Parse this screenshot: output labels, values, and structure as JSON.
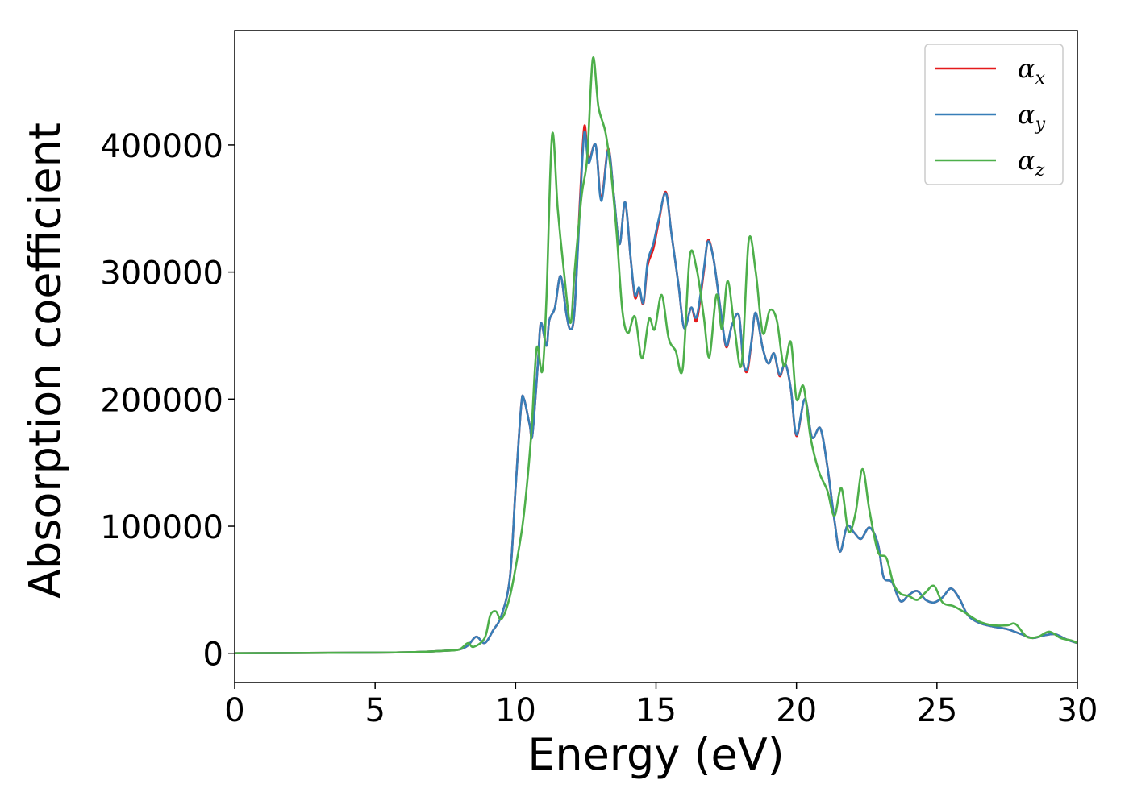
{
  "chart_data": {
    "type": "line",
    "xlabel": "Energy (eV)",
    "ylabel": "Absorption coefficient",
    "xlim": [
      0,
      30
    ],
    "ylim": [
      -23000,
      490000
    ],
    "xticks": [
      0,
      5,
      10,
      15,
      20,
      25,
      30
    ],
    "xtick_labels": [
      "0",
      "5",
      "10",
      "15",
      "20",
      "25",
      "30"
    ],
    "yticks": [
      0,
      100000,
      200000,
      300000,
      400000
    ],
    "ytick_labels": [
      "0",
      "100000",
      "200000",
      "300000",
      "400000"
    ],
    "grid": false,
    "legend_position": "top-right",
    "series": [
      {
        "name": "α_x",
        "symbol": "α",
        "subscript": "x",
        "color": "#e41a1c",
        "points": [
          [
            0,
            0
          ],
          [
            5,
            500
          ],
          [
            6.5,
            1000
          ],
          [
            7.5,
            2000
          ],
          [
            8.0,
            3000
          ],
          [
            8.3,
            6000
          ],
          [
            8.6,
            13000
          ],
          [
            8.9,
            8000
          ],
          [
            9.2,
            18000
          ],
          [
            9.5,
            30000
          ],
          [
            9.8,
            60000
          ],
          [
            10.0,
            130000
          ],
          [
            10.2,
            195000
          ],
          [
            10.3,
            200000
          ],
          [
            10.5,
            180000
          ],
          [
            10.6,
            172000
          ],
          [
            10.8,
            230000
          ],
          [
            10.9,
            260000
          ],
          [
            11.1,
            242000
          ],
          [
            11.2,
            262000
          ],
          [
            11.4,
            272000
          ],
          [
            11.6,
            297000
          ],
          [
            11.8,
            268000
          ],
          [
            11.95,
            255000
          ],
          [
            12.1,
            270000
          ],
          [
            12.3,
            360000
          ],
          [
            12.45,
            415000
          ],
          [
            12.6,
            388000
          ],
          [
            12.85,
            400000
          ],
          [
            13.05,
            358000
          ],
          [
            13.3,
            397000
          ],
          [
            13.5,
            360000
          ],
          [
            13.7,
            322000
          ],
          [
            13.9,
            355000
          ],
          [
            14.1,
            310000
          ],
          [
            14.25,
            280000
          ],
          [
            14.4,
            287000
          ],
          [
            14.55,
            275000
          ],
          [
            14.7,
            305000
          ],
          [
            14.9,
            318000
          ],
          [
            15.1,
            340000
          ],
          [
            15.35,
            363000
          ],
          [
            15.55,
            330000
          ],
          [
            15.8,
            290000
          ],
          [
            16.0,
            256000
          ],
          [
            16.25,
            272000
          ],
          [
            16.45,
            262000
          ],
          [
            16.7,
            300000
          ],
          [
            16.85,
            325000
          ],
          [
            17.05,
            310000
          ],
          [
            17.3,
            270000
          ],
          [
            17.5,
            241000
          ],
          [
            17.7,
            258000
          ],
          [
            17.95,
            266000
          ],
          [
            18.1,
            230000
          ],
          [
            18.25,
            222000
          ],
          [
            18.4,
            245000
          ],
          [
            18.55,
            268000
          ],
          [
            18.8,
            240000
          ],
          [
            19.0,
            228000
          ],
          [
            19.2,
            236000
          ],
          [
            19.4,
            218000
          ],
          [
            19.6,
            228000
          ],
          [
            19.8,
            208000
          ],
          [
            20.0,
            171000
          ],
          [
            20.3,
            200000
          ],
          [
            20.55,
            170000
          ],
          [
            20.85,
            177000
          ],
          [
            21.1,
            147000
          ],
          [
            21.35,
            105000
          ],
          [
            21.55,
            80000
          ],
          [
            21.8,
            100000
          ],
          [
            22.05,
            95000
          ],
          [
            22.3,
            90000
          ],
          [
            22.6,
            99000
          ],
          [
            22.9,
            86000
          ],
          [
            23.1,
            60000
          ],
          [
            23.4,
            56000
          ],
          [
            23.7,
            41000
          ],
          [
            24.0,
            46000
          ],
          [
            24.3,
            49000
          ],
          [
            24.6,
            42000
          ],
          [
            24.9,
            40000
          ],
          [
            25.2,
            44000
          ],
          [
            25.5,
            51000
          ],
          [
            25.8,
            43000
          ],
          [
            26.1,
            30000
          ],
          [
            26.5,
            24000
          ],
          [
            27.0,
            21000
          ],
          [
            27.5,
            19000
          ],
          [
            28.0,
            15000
          ],
          [
            28.4,
            12000
          ],
          [
            28.8,
            14000
          ],
          [
            29.2,
            15000
          ],
          [
            29.6,
            11000
          ],
          [
            30.0,
            8000
          ]
        ]
      },
      {
        "name": "α_y",
        "symbol": "α",
        "subscript": "y",
        "color": "#377eb8",
        "points": [
          [
            0,
            0
          ],
          [
            5,
            500
          ],
          [
            6.5,
            1000
          ],
          [
            7.5,
            2000
          ],
          [
            8.0,
            3000
          ],
          [
            8.3,
            6000
          ],
          [
            8.6,
            13000
          ],
          [
            8.9,
            8000
          ],
          [
            9.2,
            18000
          ],
          [
            9.5,
            30000
          ],
          [
            9.8,
            60000
          ],
          [
            10.0,
            130000
          ],
          [
            10.2,
            195000
          ],
          [
            10.3,
            200000
          ],
          [
            10.5,
            180000
          ],
          [
            10.6,
            172000
          ],
          [
            10.8,
            230000
          ],
          [
            10.9,
            260000
          ],
          [
            11.1,
            242000
          ],
          [
            11.2,
            262000
          ],
          [
            11.4,
            272000
          ],
          [
            11.6,
            297000
          ],
          [
            11.8,
            268000
          ],
          [
            11.95,
            255000
          ],
          [
            12.1,
            270000
          ],
          [
            12.3,
            355000
          ],
          [
            12.45,
            410000
          ],
          [
            12.6,
            386000
          ],
          [
            12.85,
            400000
          ],
          [
            13.05,
            356000
          ],
          [
            13.3,
            396000
          ],
          [
            13.5,
            360000
          ],
          [
            13.7,
            322000
          ],
          [
            13.9,
            355000
          ],
          [
            14.1,
            310000
          ],
          [
            14.25,
            282000
          ],
          [
            14.4,
            288000
          ],
          [
            14.55,
            276000
          ],
          [
            14.7,
            308000
          ],
          [
            14.9,
            322000
          ],
          [
            15.1,
            342000
          ],
          [
            15.35,
            362000
          ],
          [
            15.55,
            330000
          ],
          [
            15.8,
            290000
          ],
          [
            16.0,
            256000
          ],
          [
            16.25,
            272000
          ],
          [
            16.45,
            265000
          ],
          [
            16.7,
            302000
          ],
          [
            16.85,
            324000
          ],
          [
            17.05,
            310000
          ],
          [
            17.3,
            270000
          ],
          [
            17.5,
            242000
          ],
          [
            17.7,
            258000
          ],
          [
            17.95,
            266000
          ],
          [
            18.1,
            230000
          ],
          [
            18.25,
            224000
          ],
          [
            18.4,
            246000
          ],
          [
            18.55,
            268000
          ],
          [
            18.8,
            240000
          ],
          [
            19.0,
            228000
          ],
          [
            19.2,
            236000
          ],
          [
            19.4,
            219000
          ],
          [
            19.6,
            228000
          ],
          [
            19.8,
            208000
          ],
          [
            20.0,
            172000
          ],
          [
            20.3,
            200000
          ],
          [
            20.55,
            170000
          ],
          [
            20.85,
            177000
          ],
          [
            21.1,
            147000
          ],
          [
            21.35,
            105000
          ],
          [
            21.55,
            80000
          ],
          [
            21.8,
            100000
          ],
          [
            22.05,
            95000
          ],
          [
            22.3,
            90000
          ],
          [
            22.6,
            99000
          ],
          [
            22.9,
            86000
          ],
          [
            23.1,
            60000
          ],
          [
            23.4,
            56000
          ],
          [
            23.7,
            41000
          ],
          [
            24.0,
            46000
          ],
          [
            24.3,
            49000
          ],
          [
            24.6,
            42000
          ],
          [
            24.9,
            40000
          ],
          [
            25.2,
            44000
          ],
          [
            25.5,
            51000
          ],
          [
            25.8,
            43000
          ],
          [
            26.1,
            30000
          ],
          [
            26.5,
            24000
          ],
          [
            27.0,
            21000
          ],
          [
            27.5,
            19000
          ],
          [
            28.0,
            15000
          ],
          [
            28.4,
            12000
          ],
          [
            28.8,
            14000
          ],
          [
            29.2,
            15000
          ],
          [
            29.6,
            11000
          ],
          [
            30.0,
            8000
          ]
        ]
      },
      {
        "name": "α_z",
        "symbol": "α",
        "subscript": "z",
        "color": "#4daf4a",
        "points": [
          [
            0,
            0
          ],
          [
            5,
            500
          ],
          [
            6.5,
            1000
          ],
          [
            7.5,
            2000
          ],
          [
            8.0,
            3000
          ],
          [
            8.3,
            8000
          ],
          [
            8.5,
            5000
          ],
          [
            8.9,
            12000
          ],
          [
            9.1,
            30000
          ],
          [
            9.3,
            33000
          ],
          [
            9.5,
            27000
          ],
          [
            9.8,
            45000
          ],
          [
            10.1,
            80000
          ],
          [
            10.3,
            110000
          ],
          [
            10.55,
            170000
          ],
          [
            10.75,
            240000
          ],
          [
            10.95,
            222000
          ],
          [
            11.1,
            280000
          ],
          [
            11.3,
            408000
          ],
          [
            11.5,
            350000
          ],
          [
            11.7,
            305000
          ],
          [
            11.95,
            260000
          ],
          [
            12.1,
            300000
          ],
          [
            12.35,
            360000
          ],
          [
            12.55,
            390000
          ],
          [
            12.75,
            468000
          ],
          [
            12.95,
            430000
          ],
          [
            13.2,
            410000
          ],
          [
            13.4,
            378000
          ],
          [
            13.6,
            330000
          ],
          [
            13.8,
            270000
          ],
          [
            14.0,
            252000
          ],
          [
            14.25,
            265000
          ],
          [
            14.5,
            232000
          ],
          [
            14.75,
            263000
          ],
          [
            14.95,
            255000
          ],
          [
            15.2,
            282000
          ],
          [
            15.45,
            248000
          ],
          [
            15.7,
            238000
          ],
          [
            15.95,
            224000
          ],
          [
            16.2,
            312000
          ],
          [
            16.45,
            302000
          ],
          [
            16.7,
            265000
          ],
          [
            16.9,
            233000
          ],
          [
            17.15,
            282000
          ],
          [
            17.35,
            255000
          ],
          [
            17.55,
            293000
          ],
          [
            17.8,
            255000
          ],
          [
            18.05,
            228000
          ],
          [
            18.3,
            325000
          ],
          [
            18.55,
            300000
          ],
          [
            18.8,
            252000
          ],
          [
            19.05,
            270000
          ],
          [
            19.3,
            262000
          ],
          [
            19.55,
            226000
          ],
          [
            19.8,
            245000
          ],
          [
            20.0,
            200000
          ],
          [
            20.25,
            210000
          ],
          [
            20.5,
            170000
          ],
          [
            20.8,
            143000
          ],
          [
            21.1,
            128000
          ],
          [
            21.35,
            108000
          ],
          [
            21.6,
            130000
          ],
          [
            21.85,
            96000
          ],
          [
            22.1,
            110000
          ],
          [
            22.35,
            145000
          ],
          [
            22.6,
            112000
          ],
          [
            22.9,
            80000
          ],
          [
            23.2,
            75000
          ],
          [
            23.45,
            55000
          ],
          [
            23.7,
            47000
          ],
          [
            24.0,
            45000
          ],
          [
            24.3,
            42000
          ],
          [
            24.6,
            48000
          ],
          [
            24.9,
            53000
          ],
          [
            25.2,
            40000
          ],
          [
            25.6,
            37000
          ],
          [
            26.0,
            32000
          ],
          [
            26.5,
            25000
          ],
          [
            27.0,
            22000
          ],
          [
            27.5,
            22000
          ],
          [
            27.8,
            23000
          ],
          [
            28.2,
            13000
          ],
          [
            28.6,
            13000
          ],
          [
            29.0,
            17000
          ],
          [
            29.4,
            12000
          ],
          [
            29.8,
            10000
          ],
          [
            30.0,
            8000
          ]
        ]
      }
    ]
  }
}
